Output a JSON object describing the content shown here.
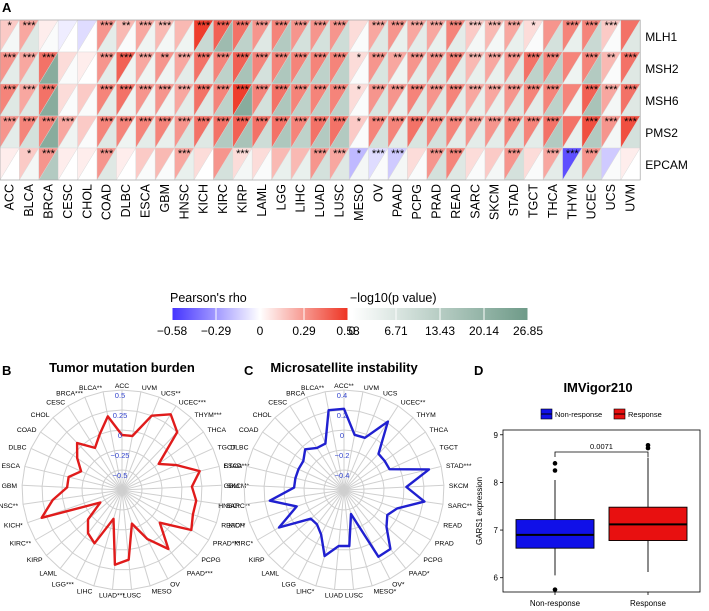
{
  "panels": {
    "A": "A",
    "B": "B",
    "C": "C",
    "D": "D"
  },
  "chart_data": [
    {
      "panel": "A",
      "type": "heatmap",
      "cancers": [
        "ACC",
        "BLCA",
        "BRCA",
        "CESC",
        "CHOL",
        "COAD",
        "DLBC",
        "ESCA",
        "GBM",
        "HNSC",
        "KICH",
        "KIRC",
        "KIRP",
        "LAML",
        "LGG",
        "LIHC",
        "LUAD",
        "LUSC",
        "MESO",
        "OV",
        "PAAD",
        "PCPG",
        "PRAD",
        "READ",
        "SARC",
        "SKCM",
        "STAD",
        "TGCT",
        "THCA",
        "THYM",
        "UCEC",
        "UCS",
        "UVM"
      ],
      "genes": [
        "MLH1",
        "MSH2",
        "MSH6",
        "PMS2",
        "EPCAM"
      ],
      "rho": [
        [
          0.15,
          0.25,
          0.05,
          -0.05,
          -0.1,
          0.3,
          0.2,
          0.25,
          0.2,
          0.2,
          0.55,
          0.45,
          0.4,
          0.3,
          0.35,
          0.3,
          0.3,
          0.3,
          0.1,
          0.25,
          0.3,
          0.25,
          0.25,
          0.35,
          0.15,
          0.2,
          0.25,
          0.1,
          0.3,
          0.35,
          0.35,
          0.15,
          0.4
        ],
        [
          0.3,
          0.25,
          0.4,
          0.1,
          0.05,
          0.3,
          0.45,
          0.25,
          0.3,
          0.25,
          0.4,
          0.35,
          0.45,
          0.35,
          0.35,
          0.35,
          0.35,
          0.35,
          0.1,
          0.3,
          0.25,
          0.3,
          0.3,
          0.35,
          0.2,
          0.25,
          0.3,
          0.4,
          0.35,
          0.35,
          0.35,
          0.2,
          0.4
        ],
        [
          0.35,
          0.25,
          0.4,
          0.1,
          0.15,
          0.35,
          0.4,
          0.3,
          0.3,
          0.25,
          0.4,
          0.35,
          0.55,
          0.35,
          0.4,
          0.35,
          0.35,
          0.35,
          0.1,
          0.3,
          0.3,
          0.35,
          0.3,
          0.35,
          0.25,
          0.25,
          0.3,
          0.35,
          0.35,
          0.35,
          0.45,
          0.25,
          0.4
        ],
        [
          0.3,
          0.35,
          0.35,
          0.25,
          0.15,
          0.35,
          0.35,
          0.35,
          0.35,
          0.3,
          0.4,
          0.4,
          0.45,
          0.4,
          0.4,
          0.35,
          0.4,
          0.4,
          0.15,
          0.35,
          0.35,
          0.4,
          0.35,
          0.35,
          0.3,
          0.3,
          0.35,
          0.35,
          0.4,
          0.4,
          0.5,
          0.3,
          0.5
        ],
        [
          0.05,
          0.15,
          0.3,
          0.05,
          0.05,
          0.3,
          0.05,
          0.15,
          0.2,
          0.25,
          0.1,
          0.3,
          0.1,
          0.1,
          0.2,
          0.2,
          0.3,
          0.25,
          -0.2,
          -0.1,
          -0.15,
          0.1,
          0.3,
          0.35,
          0.1,
          0.15,
          0.3,
          0.1,
          0.25,
          -0.5,
          0.3,
          -0.15,
          0.05
        ]
      ],
      "logp": [
        [
          2,
          6,
          1,
          0,
          0,
          5,
          1,
          3,
          2,
          3,
          10,
          18,
          12,
          6,
          14,
          8,
          8,
          9,
          1,
          6,
          4,
          5,
          4,
          5,
          2,
          2,
          4,
          1,
          8,
          4,
          10,
          1,
          6
        ],
        [
          5,
          6,
          22,
          1,
          0,
          5,
          3,
          3,
          3,
          5,
          6,
          12,
          16,
          8,
          15,
          12,
          12,
          12,
          1,
          7,
          3,
          5,
          6,
          5,
          4,
          4,
          6,
          12,
          12,
          3,
          14,
          1,
          6
        ],
        [
          6,
          6,
          22,
          1,
          1,
          5,
          3,
          3,
          3,
          5,
          6,
          12,
          22,
          8,
          15,
          12,
          12,
          12,
          1,
          7,
          4,
          6,
          6,
          5,
          4,
          4,
          6,
          5,
          12,
          3,
          16,
          2,
          6
        ],
        [
          5,
          8,
          22,
          3,
          1,
          6,
          3,
          5,
          4,
          7,
          6,
          14,
          16,
          9,
          15,
          12,
          14,
          14,
          1,
          8,
          5,
          7,
          8,
          5,
          5,
          5,
          7,
          5,
          14,
          4,
          14,
          2,
          8
        ],
        [
          0,
          2,
          14,
          0,
          0,
          6,
          0,
          1,
          1,
          4,
          0,
          8,
          2,
          1,
          4,
          4,
          8,
          6,
          2,
          1,
          2,
          1,
          8,
          6,
          1,
          2,
          8,
          1,
          5,
          5,
          8,
          1,
          0
        ]
      ],
      "stars": [
        [
          "*",
          "***",
          "",
          "",
          "",
          "***",
          "**",
          "***",
          "***",
          "",
          "***",
          "***",
          "***",
          "***",
          "***",
          "***",
          "***",
          "***",
          "",
          "***",
          "***",
          "***",
          "***",
          "***",
          "***",
          "***",
          "***",
          "*",
          "",
          "***",
          "***",
          "***",
          ""
        ],
        [
          "***",
          "***",
          "***",
          "",
          "",
          "***",
          "***",
          "***",
          "**",
          "***",
          "***",
          "***",
          "***",
          "***",
          "***",
          "***",
          "***",
          "***",
          "*",
          "***",
          "**",
          "***",
          "***",
          "***",
          "***",
          "***",
          "***",
          "***",
          "***",
          "",
          "***",
          "**",
          "***"
        ],
        [
          "***",
          "***",
          "***",
          "",
          "",
          "***",
          "***",
          "***",
          "***",
          "***",
          "***",
          "***",
          "***",
          "***",
          "***",
          "***",
          "***",
          "***",
          "*",
          "***",
          "***",
          "***",
          "***",
          "***",
          "***",
          "***",
          "***",
          "***",
          "***",
          "",
          "***",
          "***",
          "***"
        ],
        [
          "***",
          "***",
          "***",
          "***",
          "",
          "***",
          "***",
          "***",
          "***",
          "***",
          "***",
          "***",
          "***",
          "***",
          "***",
          "***",
          "***",
          "***",
          "*",
          "***",
          "***",
          "***",
          "***",
          "***",
          "***",
          "***",
          "***",
          "***",
          "***",
          "",
          "***",
          "***",
          "***"
        ],
        [
          "",
          "*",
          "***",
          "",
          "",
          "***",
          "",
          "",
          "",
          "***",
          "",
          "",
          "***",
          "",
          "",
          "",
          "***",
          "***",
          "*",
          "***",
          "***",
          "",
          "***",
          "***",
          "",
          "",
          "***",
          "",
          "***",
          "***",
          "***",
          "",
          ""
        ]
      ],
      "legend": {
        "rho_title": "Pearson's rho",
        "rho_ticks": [
          "−0.58",
          "−0.29",
          "0",
          "0.29",
          "0.58"
        ],
        "p_title": "−log10(p value)",
        "p_ticks": [
          "0",
          "6.71",
          "13.43",
          "20.14",
          "26.85"
        ]
      },
      "colors": {
        "neg": "#4433ff",
        "zero": "#ffffff",
        "pos": "#ee3322",
        "p_low": "#ffffff",
        "p_high": "#6e9a88"
      }
    },
    {
      "panel": "B",
      "type": "radar",
      "title": "Tumor mutation burden",
      "labels": [
        "ACC",
        "UVM",
        "UCS**",
        "UCEC***",
        "THYM***",
        "THCA",
        "TGCT",
        "STAD***",
        "SKCM*",
        "SARC**",
        "READ**",
        "PRAD***",
        "PCPG",
        "PAAD***",
        "OV",
        "MESO",
        "LUSC",
        "LUAD***",
        "LIHC",
        "LGG***",
        "LAML",
        "KIRP",
        "KIRC**",
        "KICH*",
        "HNSC**",
        "GBM",
        "ESCA",
        "DLBC",
        "COAD",
        "CHOL",
        "CESC",
        "BRCA***",
        "BLCA**"
      ],
      "values": [
        0.05,
        0.05,
        0.3,
        0.4,
        0.3,
        -0.05,
        0.1,
        0.3,
        0.2,
        0.25,
        0.25,
        0.3,
        0.0,
        0.25,
        0.05,
        -0.15,
        0.2,
        0.25,
        -0.2,
        0.1,
        0.05,
        -0.05,
        -0.25,
        0.35,
        0.2,
        0.05,
        0.05,
        -0.05,
        0.05,
        0.15,
        0.0,
        0.1,
        0.25
      ],
      "rings": [
        "0.5",
        "0.25",
        "0",
        "−0.25",
        "−0.5"
      ],
      "rmin": -0.5,
      "rmax": 0.5,
      "color": "#e01b1b"
    },
    {
      "panel": "C",
      "type": "radar",
      "title": "Microsatellite instability",
      "labels": [
        "ACC**",
        "UVM",
        "UCS",
        "UCEC**",
        "THYM",
        "THCA",
        "TGCT",
        "STAD***",
        "SKCM",
        "SARC**",
        "READ",
        "PRAD",
        "PCPG",
        "PAAD*",
        "OV*",
        "MESO*",
        "LUSC",
        "LUAD",
        "LIHC*",
        "LGG",
        "LAML",
        "KIRP",
        "KIRC*",
        "KICH",
        "HNSC*",
        "GBM",
        "ESCA",
        "DLBC",
        "COAD",
        "CHOL",
        "CESC",
        "BRCA",
        "BLCA**"
      ],
      "values": [
        0.25,
        0.05,
        0.05,
        0.25,
        0.0,
        0.0,
        0.0,
        0.3,
        0.1,
        0.25,
        0.05,
        0.0,
        0.05,
        0.2,
        0.2,
        -0.2,
        0.05,
        0.05,
        0.15,
        0.0,
        -0.05,
        -0.05,
        0.2,
        0.0,
        0.2,
        0.0,
        0.0,
        0.0,
        0.0,
        0.05,
        0.0,
        0.0,
        0.25
      ],
      "rings": [
        "0.4",
        "0.2",
        "0",
        "−0.2",
        "−0.4"
      ],
      "rmin": -0.4,
      "rmax": 0.4,
      "color": "#2020d0"
    },
    {
      "panel": "D",
      "type": "box",
      "title": "IMVigor210",
      "ylabel": "GARS1 expression",
      "yticks": [
        6,
        7,
        8,
        9
      ],
      "ylim": [
        5.7,
        9.1
      ],
      "groups": [
        {
          "name": "Non-response",
          "min": 6.05,
          "q1": 6.62,
          "median": 6.9,
          "q3": 7.22,
          "max": 8.05,
          "outliers": [
            8.4,
            8.25,
            5.75
          ],
          "color": "#1010e8"
        },
        {
          "name": "Response",
          "min": 6.12,
          "q1": 6.78,
          "median": 7.12,
          "q3": 7.48,
          "max": 8.52,
          "outliers": [
            8.72,
            8.78
          ],
          "color": "#e81010"
        }
      ],
      "pvalue": "0.0071",
      "legend": [
        "Non-response",
        "Response"
      ]
    }
  ]
}
